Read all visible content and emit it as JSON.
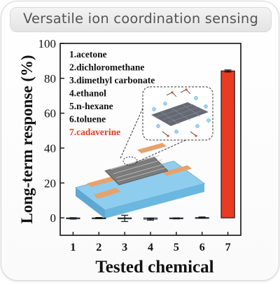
{
  "banner": {
    "title": "Versatile ion coordination sensing"
  },
  "chart_data": {
    "type": "bar",
    "categories": [
      "1",
      "2",
      "3",
      "4",
      "5",
      "6",
      "7"
    ],
    "values": [
      -0.3,
      -0.1,
      -0.3,
      -0.8,
      -0.3,
      0.2,
      84.2
    ],
    "errors": [
      0.4,
      0.3,
      1.8,
      0.5,
      0.3,
      0.3,
      0.6
    ],
    "bar_fills": [
      "#2e4d80",
      "#2e4d80",
      "#2e4d80",
      "#8c9bbf",
      "#2e4d80",
      "#2e4d80",
      "#e83b22"
    ],
    "xlabel": "Tested chemical",
    "ylabel": "Long-term response (%)",
    "ylim": [
      -10,
      100
    ],
    "yticks": [
      0,
      20,
      40,
      60,
      80,
      100
    ],
    "grid": false,
    "legend": {
      "items": [
        {
          "label": "1.acetone",
          "color": "#111111"
        },
        {
          "label": "2.dichloromethane",
          "color": "#111111"
        },
        {
          "label": "3.dimethyl carbonate",
          "color": "#111111"
        },
        {
          "label": "4.ethanol",
          "color": "#111111"
        },
        {
          "label": "5.n-hexane",
          "color": "#111111"
        },
        {
          "label": "6.toluene",
          "color": "#111111"
        },
        {
          "label": "7.cadaverine",
          "color": "#e83b22"
        }
      ]
    }
  },
  "colors": {
    "accent_red": "#e83b22",
    "device_blue": "#7fc2e8",
    "electrode_orange": "#e8a36a"
  }
}
